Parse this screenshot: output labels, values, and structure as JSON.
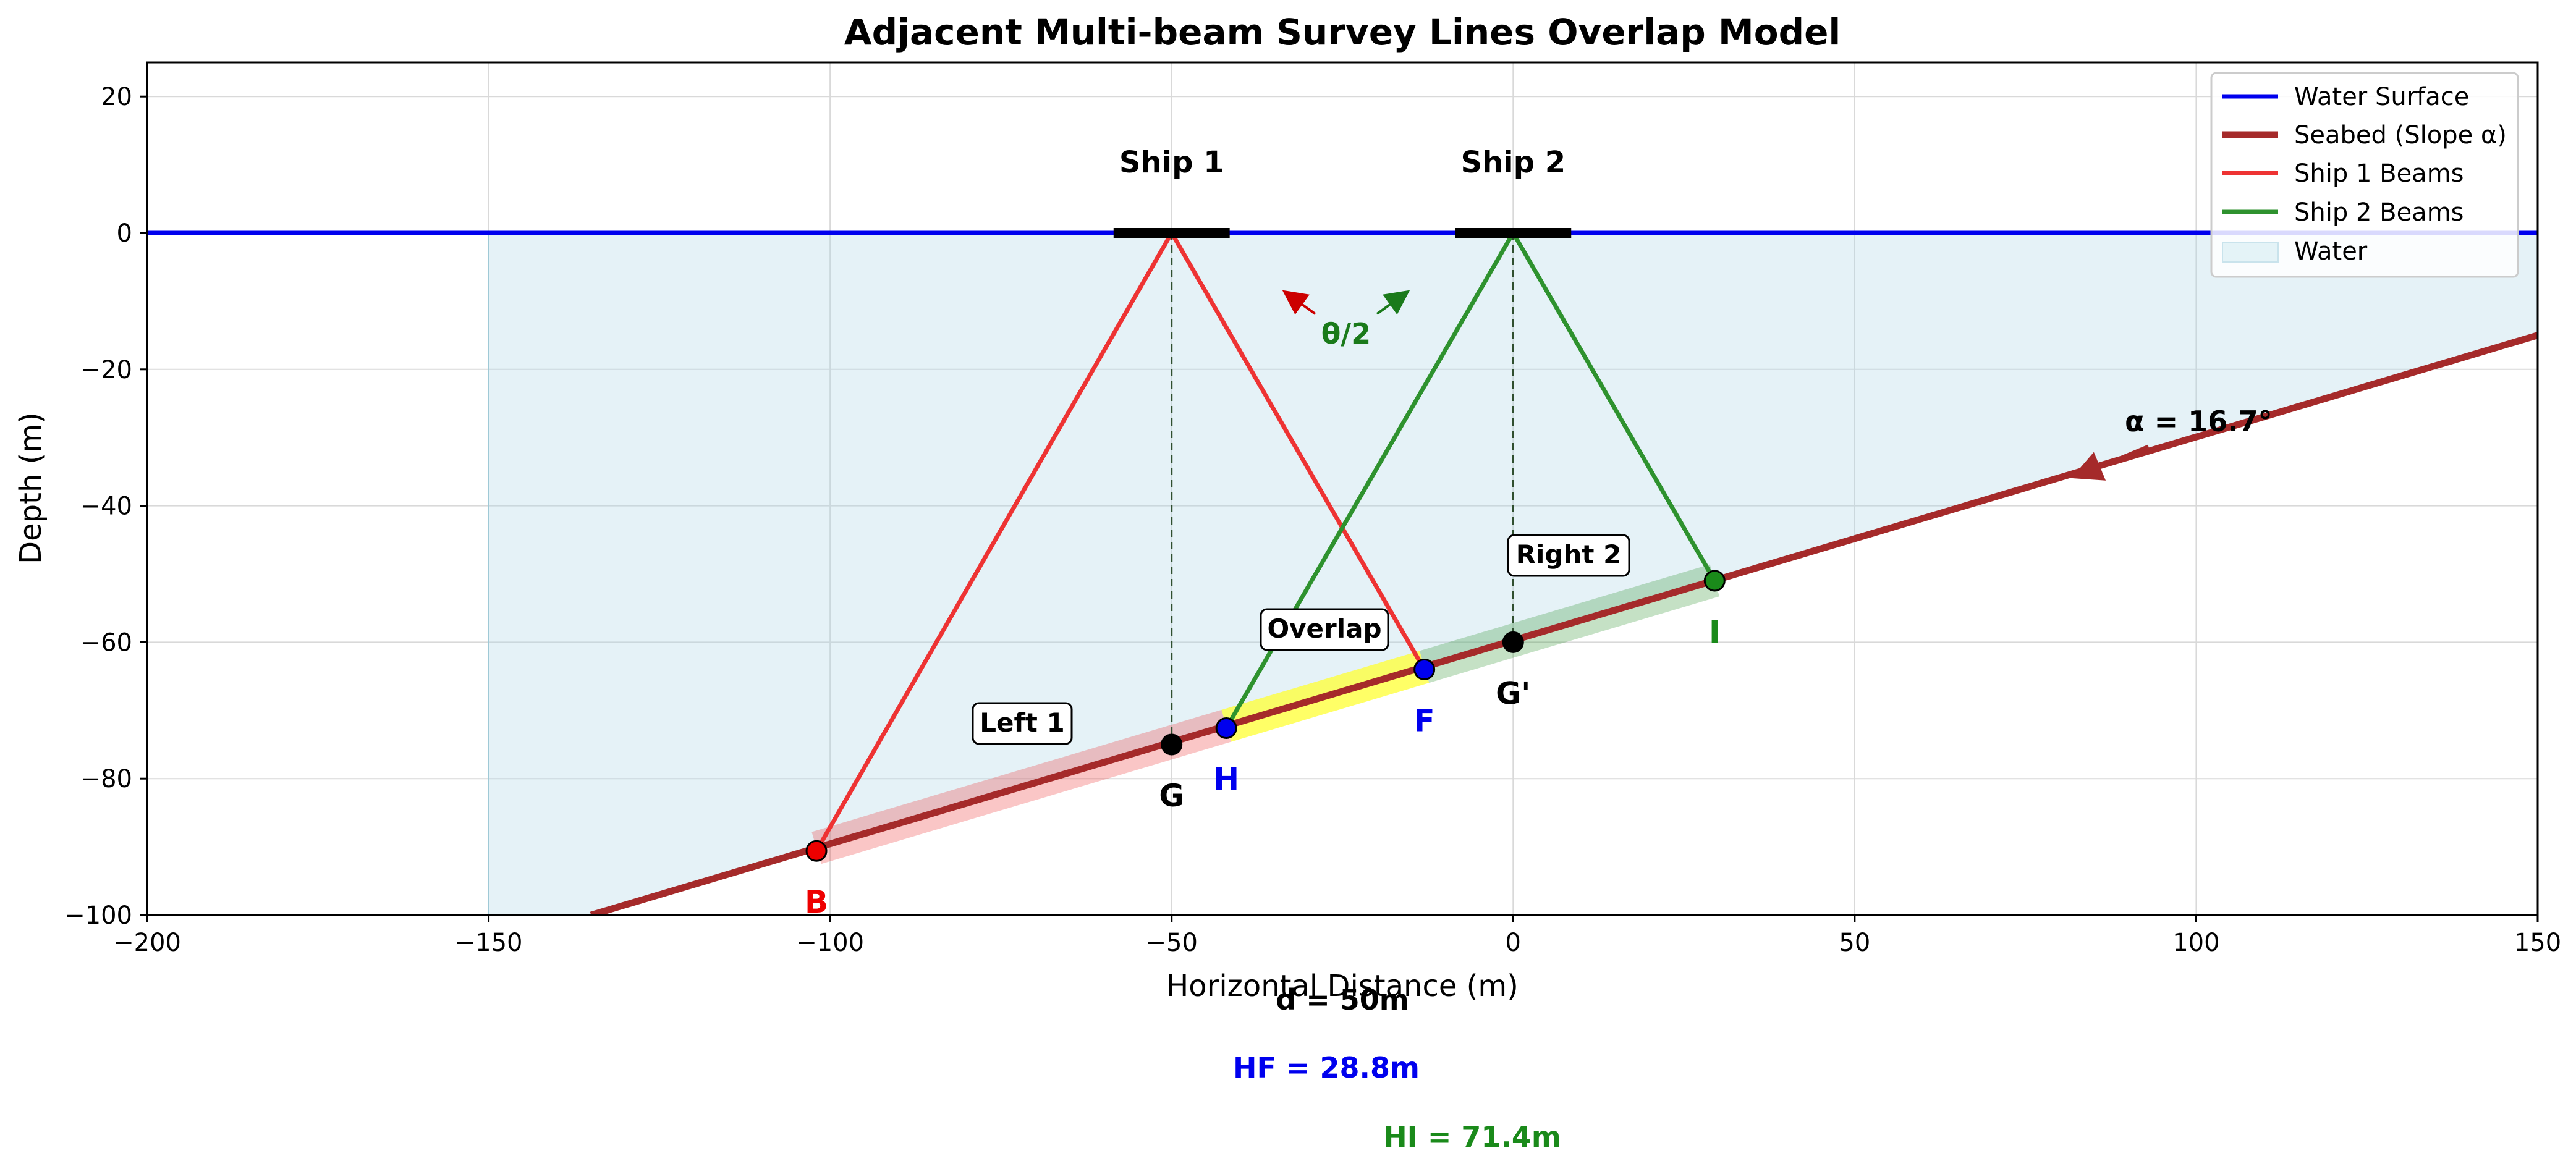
{
  "chart_data": {
    "type": "line",
    "title": "Adjacent Multi-beam Survey Lines Overlap Model",
    "xlabel": "Horizontal Distance (m)",
    "ylabel": "Depth (m)",
    "xlim": [
      -200,
      150
    ],
    "ylim": [
      -100,
      25
    ],
    "x_ticks": [
      -200,
      -150,
      -100,
      -50,
      0,
      50,
      100,
      150
    ],
    "y_ticks": [
      -100,
      -80,
      -60,
      -40,
      -20,
      0,
      20
    ],
    "grid": true,
    "legend_position": "top-right",
    "legend": [
      {
        "label": "Water Surface",
        "color": "#0000ee",
        "kind": "line"
      },
      {
        "label": "Seabed (Slope α)",
        "color": "#a52a2a",
        "kind": "line"
      },
      {
        "label": "Ship 1 Beams",
        "color": "#ee3333",
        "kind": "line"
      },
      {
        "label": "Ship 2 Beams",
        "color": "#2e922e",
        "kind": "line"
      },
      {
        "label": "Water",
        "color": "#add8e6",
        "kind": "patch"
      }
    ],
    "water_surface": {
      "y": 0
    },
    "water_region": {
      "x_start": -150,
      "x_end": 150
    },
    "seabed": {
      "slope_deg": 16.7,
      "points": [
        [
          -135,
          -100
        ],
        [
          150,
          -15
        ]
      ]
    },
    "ships": [
      {
        "name": "Ship 1",
        "x": -50,
        "y": 0,
        "color": "#ee3333"
      },
      {
        "name": "Ship 2",
        "x": 0,
        "y": 0,
        "color": "#2e922e"
      }
    ],
    "points": [
      {
        "name": "B",
        "x": -102,
        "y": -90.6,
        "fill": "#ee0000",
        "label_color": "#ee0000"
      },
      {
        "name": "G",
        "x": -50,
        "y": -75,
        "fill": "#000000",
        "label_color": "#000000"
      },
      {
        "name": "H",
        "x": -42,
        "y": -72.6,
        "fill": "#0000ee",
        "label_color": "#0000ee"
      },
      {
        "name": "F",
        "x": -13,
        "y": -64,
        "fill": "#0000ee",
        "label_color": "#0000ee"
      },
      {
        "name": "G'",
        "x": 0,
        "y": -60,
        "fill": "#000000",
        "label_color": "#000000"
      },
      {
        "name": "I",
        "x": 29.5,
        "y": -51,
        "fill": "#1a8a1a",
        "label_color": "#1a8a1a"
      }
    ],
    "beams": [
      {
        "ship": "Ship 1",
        "from": [
          -50,
          0
        ],
        "to": [
          -102,
          -90.6
        ],
        "color": "#ee3333"
      },
      {
        "ship": "Ship 1",
        "from": [
          -50,
          0
        ],
        "to": [
          -13,
          -64
        ],
        "color": "#ee3333"
      },
      {
        "ship": "Ship 2",
        "from": [
          0,
          0
        ],
        "to": [
          -42,
          -72.6
        ],
        "color": "#2e922e"
      },
      {
        "ship": "Ship 2",
        "from": [
          0,
          0
        ],
        "to": [
          29.5,
          -51
        ],
        "color": "#2e922e"
      }
    ],
    "annotations": {
      "theta": "θ/2",
      "alpha": "α = 16.7°",
      "left1": "Left 1",
      "right2": "Right 2",
      "overlap": "Overlap",
      "d": "d = 50m",
      "hf": "HF = 28.8m",
      "hi": "HI = 71.4m"
    },
    "colors": {
      "water_surface": "#0000ee",
      "seabed": "#a52a2a",
      "ship1": "#ee3333",
      "ship2": "#2e922e",
      "water": "#add8e6",
      "overlap": "#ffff33",
      "hf_text": "#0000ee",
      "hi_text": "#1a8a1a",
      "theta_text": "#1a7a1a"
    }
  }
}
